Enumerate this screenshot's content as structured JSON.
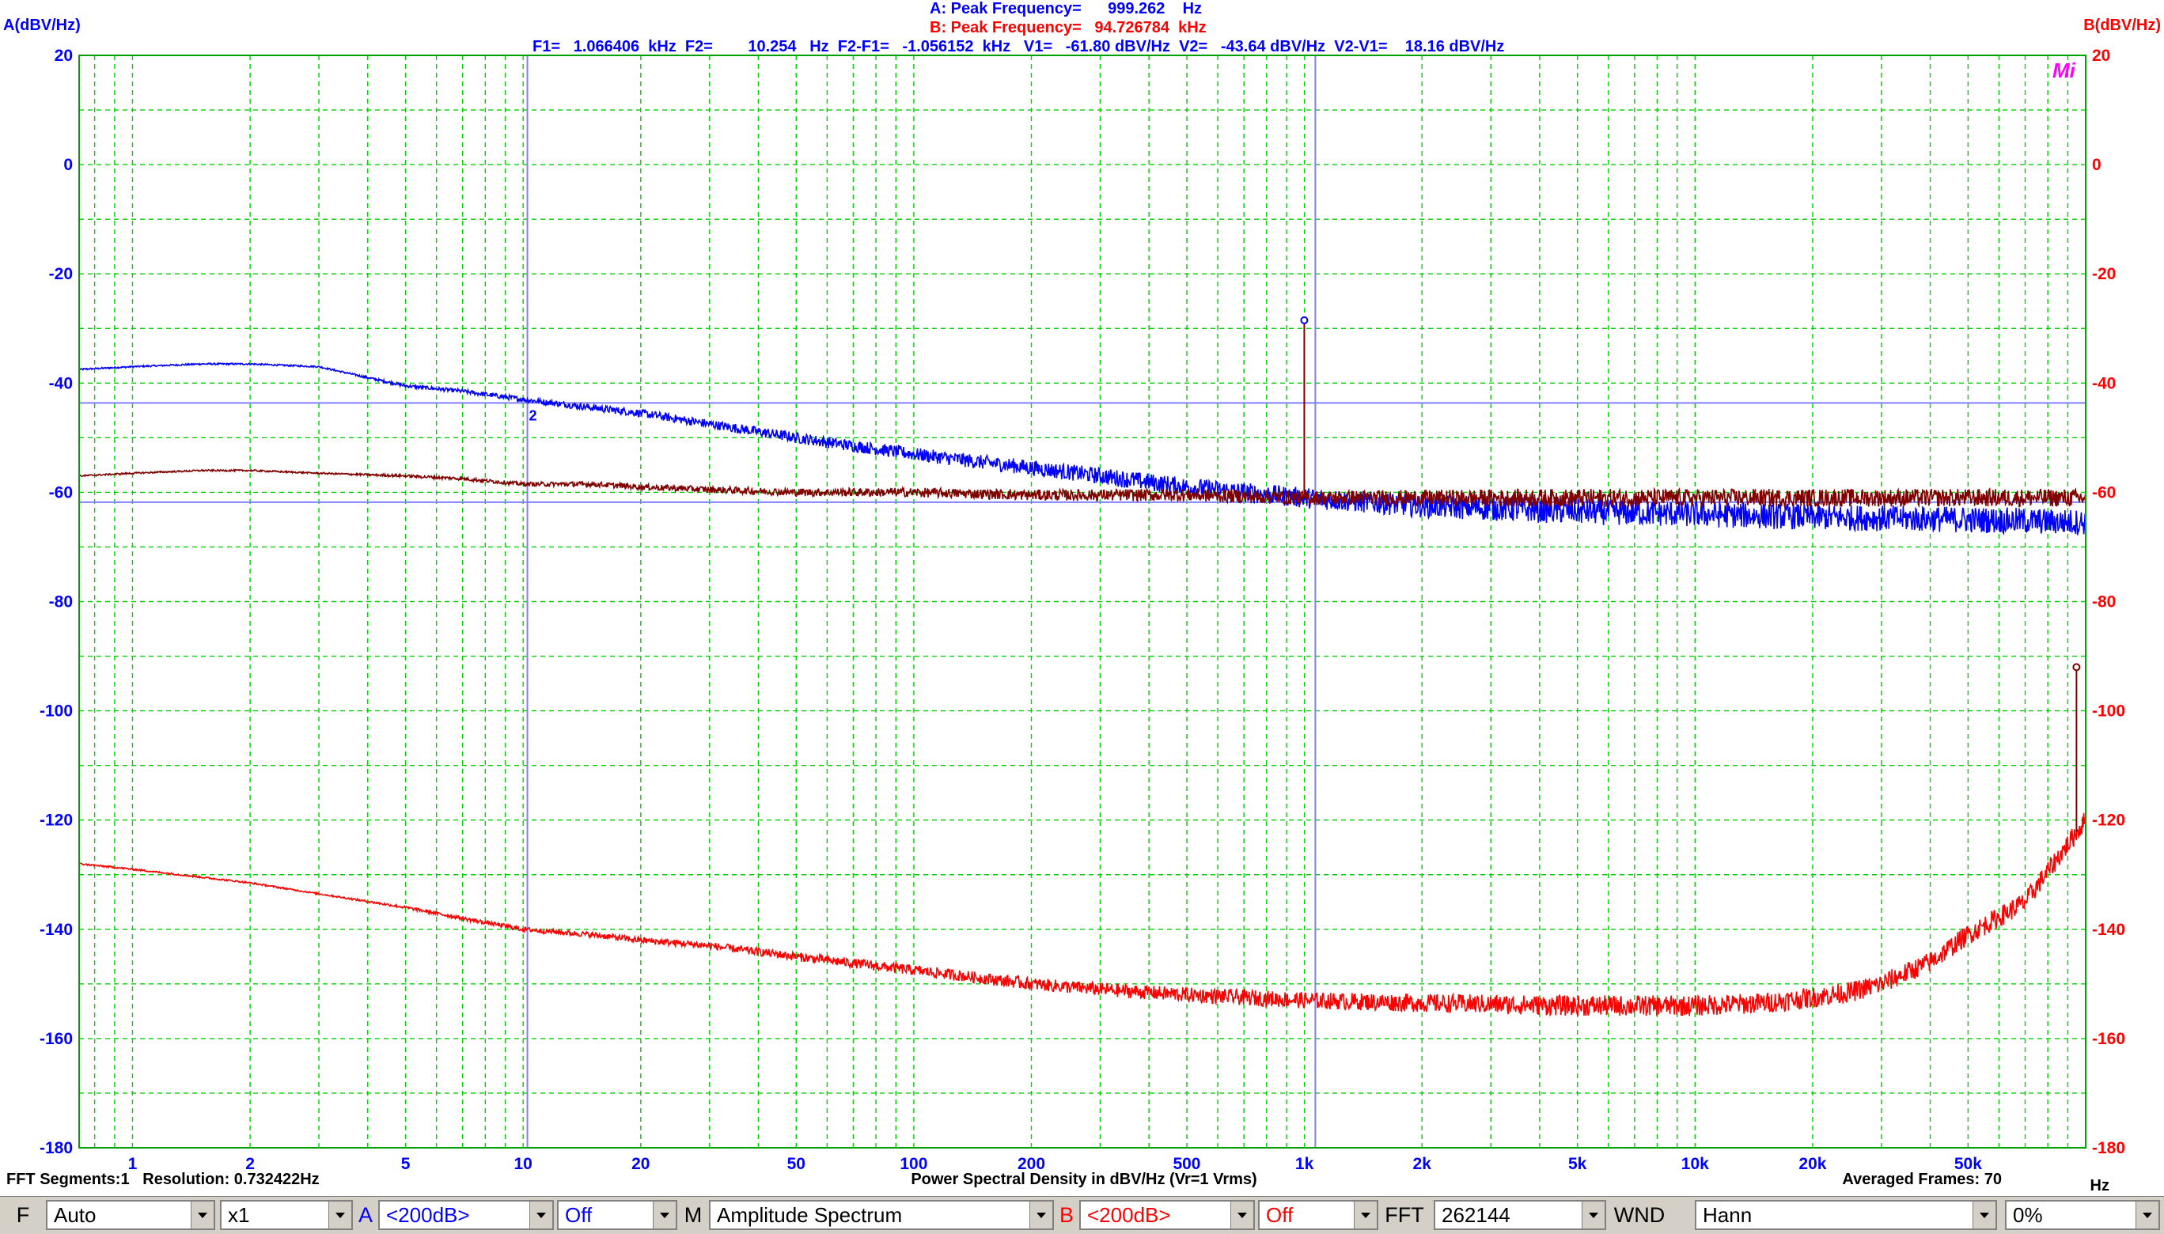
{
  "header": {
    "peak_a": "A: Peak Frequency=      999.262    Hz",
    "peak_b": "B: Peak Frequency=   94.726784  kHz",
    "cursors": "F1=   1.066406  kHz  F2=        10.254   Hz  F2-F1=   -1.056152  kHz   V1=   -61.80 dBV/Hz  V2=   -43.64 dBV/Hz  V2-V1=    18.16 dBV/Hz",
    "marker_label": "2",
    "logo": "Mi"
  },
  "footer": {
    "segments": "FFT Segments:1   Resolution: 0.732422Hz",
    "averaged": "Averaged Frames: 70",
    "unit": "Hz"
  },
  "toolbar": {
    "f_key": "F",
    "f_value": "Auto",
    "x_value": "x1",
    "a_key": "A",
    "a_range": "<200dB>",
    "a_off": "Off",
    "m_key": "M",
    "m_value": "Amplitude Spectrum",
    "b_key": "B",
    "b_range": "<200dB>",
    "b_off": "Off",
    "fft_key": "FFT",
    "fft_value": "262144",
    "wnd_key": "WND",
    "wnd_value": "Hann",
    "pct_value": "0%"
  },
  "chart_data": {
    "type": "line",
    "title": "",
    "xlabel": "Power Spectral Density in dBV/Hz (Vr=1 Vrms)",
    "ylabel_left": "A(dBV/Hz)",
    "ylabel_right": "B(dBV/Hz)",
    "x_scale": "log",
    "xlim": [
      0.73,
      100000
    ],
    "ylim": [
      -180,
      20
    ],
    "y_ticks": [
      20,
      0,
      -20,
      -40,
      -60,
      -80,
      -100,
      -120,
      -140,
      -160,
      -180
    ],
    "x_tick_labels": [
      {
        "x": 1,
        "label": "1"
      },
      {
        "x": 2,
        "label": "2"
      },
      {
        "x": 5,
        "label": "5"
      },
      {
        "x": 10,
        "label": "10"
      },
      {
        "x": 20,
        "label": "20"
      },
      {
        "x": 50,
        "label": "50"
      },
      {
        "x": 100,
        "label": "100"
      },
      {
        "x": 200,
        "label": "200"
      },
      {
        "x": 500,
        "label": "500"
      },
      {
        "x": 1000,
        "label": "1k"
      },
      {
        "x": 2000,
        "label": "2k"
      },
      {
        "x": 5000,
        "label": "5k"
      },
      {
        "x": 10000,
        "label": "10k"
      },
      {
        "x": 20000,
        "label": "20k"
      },
      {
        "x": 50000,
        "label": "50k"
      }
    ],
    "grid": true,
    "colors": {
      "grid": "#00d000",
      "channel_a": "#0000ff",
      "channel_b": "#ff0000",
      "channel_b_dark": "#800000",
      "cursor": "#8080ff",
      "axis_text": "#0000ff"
    },
    "cursors": {
      "f1": 1066.406,
      "f2": 10.254,
      "v1": -61.8,
      "v2": -43.64
    },
    "series": [
      {
        "x": [
          0.73,
          1,
          1.5,
          2,
          3,
          4,
          5,
          7,
          10,
          15,
          20,
          30,
          50,
          70,
          100,
          150,
          200,
          300,
          500,
          700,
          1000,
          2000,
          5000,
          10000,
          20000,
          50000,
          100000
        ],
        "y": [
          -37.5,
          -37,
          -36.5,
          -36.5,
          -37,
          -39,
          -40.5,
          -41.5,
          -43,
          -44.5,
          -45.5,
          -47.5,
          -50,
          -51.5,
          -53,
          -54.5,
          -55.5,
          -57,
          -59,
          -60,
          -61,
          -62.5,
          -63.5,
          -64,
          -64.5,
          -65,
          -65.5
        ],
        "spikes": [
          {
            "x": 999.262,
            "y": -28.5
          }
        ]
      },
      {
        "x": [
          0.73,
          1,
          1.5,
          2,
          3,
          5,
          7,
          10,
          15,
          20,
          30,
          50,
          100,
          200,
          500,
          1000,
          2000,
          5000,
          10000,
          20000,
          50000,
          100000
        ],
        "y": [
          -57,
          -56.5,
          -56,
          -56,
          -56.5,
          -57,
          -57.5,
          -58.5,
          -58.5,
          -59,
          -59.5,
          -60,
          -60,
          -60.5,
          -60.5,
          -61,
          -61,
          -61,
          -61,
          -61,
          -61,
          -61
        ]
      },
      {
        "x": [
          0.73,
          1,
          2,
          3,
          5,
          7,
          10,
          15,
          20,
          30,
          50,
          100,
          200,
          300,
          500,
          1000,
          2000,
          5000,
          10000,
          15000,
          20000,
          25000,
          30000,
          40000,
          50000,
          70000,
          100000
        ],
        "y": [
          -128,
          -129,
          -131.5,
          -133.5,
          -136,
          -138,
          -140,
          -141,
          -142,
          -143,
          -145,
          -147.5,
          -150,
          -151,
          -152,
          -153,
          -153.5,
          -154,
          -154,
          -153.5,
          -152.5,
          -151.5,
          -150,
          -146,
          -141,
          -135,
          -120
        ],
        "spikes": [
          {
            "x": 94726.784,
            "y": -92
          }
        ]
      }
    ]
  }
}
